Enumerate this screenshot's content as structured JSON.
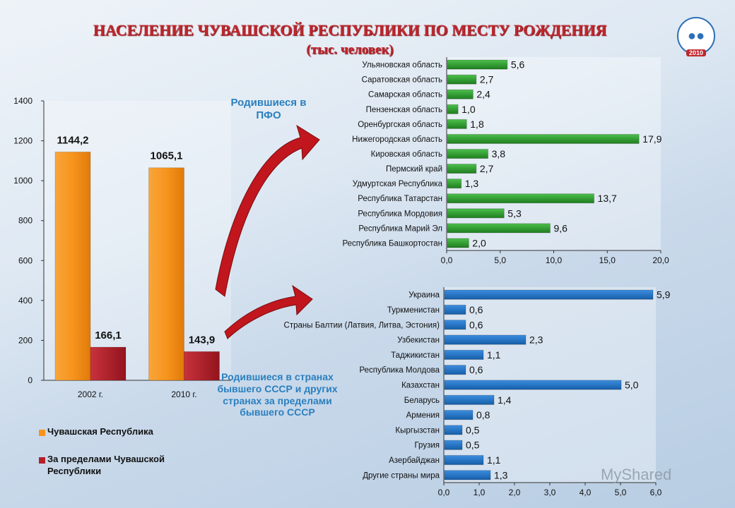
{
  "header": {
    "title": "НАСЕЛЕНИЕ ЧУВАШСКОЙ РЕСПУБЛИКИ ПО МЕСТУ РОЖДЕНИЯ",
    "subtitle": "(тыс. человек)",
    "logo_text": "2010"
  },
  "notes": {
    "pfo": "Родившиеся в ПФО",
    "ussr": "Родившиеся в странах бывшего СССР и других странах за пределами бывшего СССР"
  },
  "watermark": "MyShared",
  "colors": {
    "orange": "#f7941d",
    "red": "#b3202a",
    "green": "#2e9a2e",
    "blue": "#1f6fbf",
    "arrow": "#c1161d"
  },
  "chart_data": [
    {
      "type": "bar",
      "categories": [
        "2002 г.",
        "2010 г."
      ],
      "series": [
        {
          "name": "Чувашская Республика",
          "values": [
            1144.2,
            1065.1
          ]
        },
        {
          "name": "За пределами Чувашской Республики",
          "values": [
            166.1,
            143.9
          ]
        }
      ],
      "data_labels": [
        [
          "1144,2",
          "1065,1"
        ],
        [
          "166,1",
          "143,9"
        ]
      ],
      "ylim": [
        0,
        1400
      ],
      "yticks": [
        "0",
        "200",
        "400",
        "600",
        "800",
        "1000",
        "1200",
        "1400"
      ],
      "legend_position": "bottom"
    },
    {
      "type": "bar",
      "orientation": "horizontal",
      "categories": [
        "Ульяновская область",
        "Саратовская область",
        "Самарская область",
        "Пензенская область",
        "Оренбургская область",
        "Нижегородская область",
        "Кировская область",
        "Пермский край",
        "Удмуртская Республика",
        "Республика Татарстан",
        "Республика Мордовия",
        "Республика Марий Эл",
        "Республика Башкортостан"
      ],
      "values": [
        5.6,
        2.7,
        2.4,
        1.0,
        1.8,
        17.9,
        3.8,
        2.7,
        1.3,
        13.7,
        5.3,
        9.6,
        2.0
      ],
      "data_labels": [
        "5,6",
        "2,7",
        "2,4",
        "1,0",
        "1,8",
        "17,9",
        "3,8",
        "2,7",
        "1,3",
        "13,7",
        "5,3",
        "9,6",
        "2,0"
      ],
      "xlim": [
        0,
        20
      ],
      "xticks": [
        "0,0",
        "5,0",
        "10,0",
        "15,0",
        "20,0"
      ]
    },
    {
      "type": "bar",
      "orientation": "horizontal",
      "categories": [
        "Украина",
        "Туркменистан",
        "Страны Балтии (Латвия, Литва, Эстония)",
        "Узбекистан",
        "Таджикистан",
        "Республика Молдова",
        "Казахстан",
        "Беларусь",
        "Армения",
        "Кыргызстан",
        "Грузия",
        "Азербайджан",
        "Другие страны мира"
      ],
      "values": [
        5.9,
        0.6,
        0.6,
        2.3,
        1.1,
        0.6,
        5.0,
        1.4,
        0.8,
        0.5,
        0.5,
        1.1,
        1.3
      ],
      "data_labels": [
        "5,9",
        "0,6",
        "0,6",
        "2,3",
        "1,1",
        "0,6",
        "5,0",
        "1,4",
        "0,8",
        "0,5",
        "0,5",
        "1,1",
        "1,3"
      ],
      "xlim": [
        0,
        6
      ],
      "xticks": [
        "0,0",
        "1,0",
        "2,0",
        "3,0",
        "4,0",
        "5,0",
        "6,0"
      ]
    }
  ]
}
